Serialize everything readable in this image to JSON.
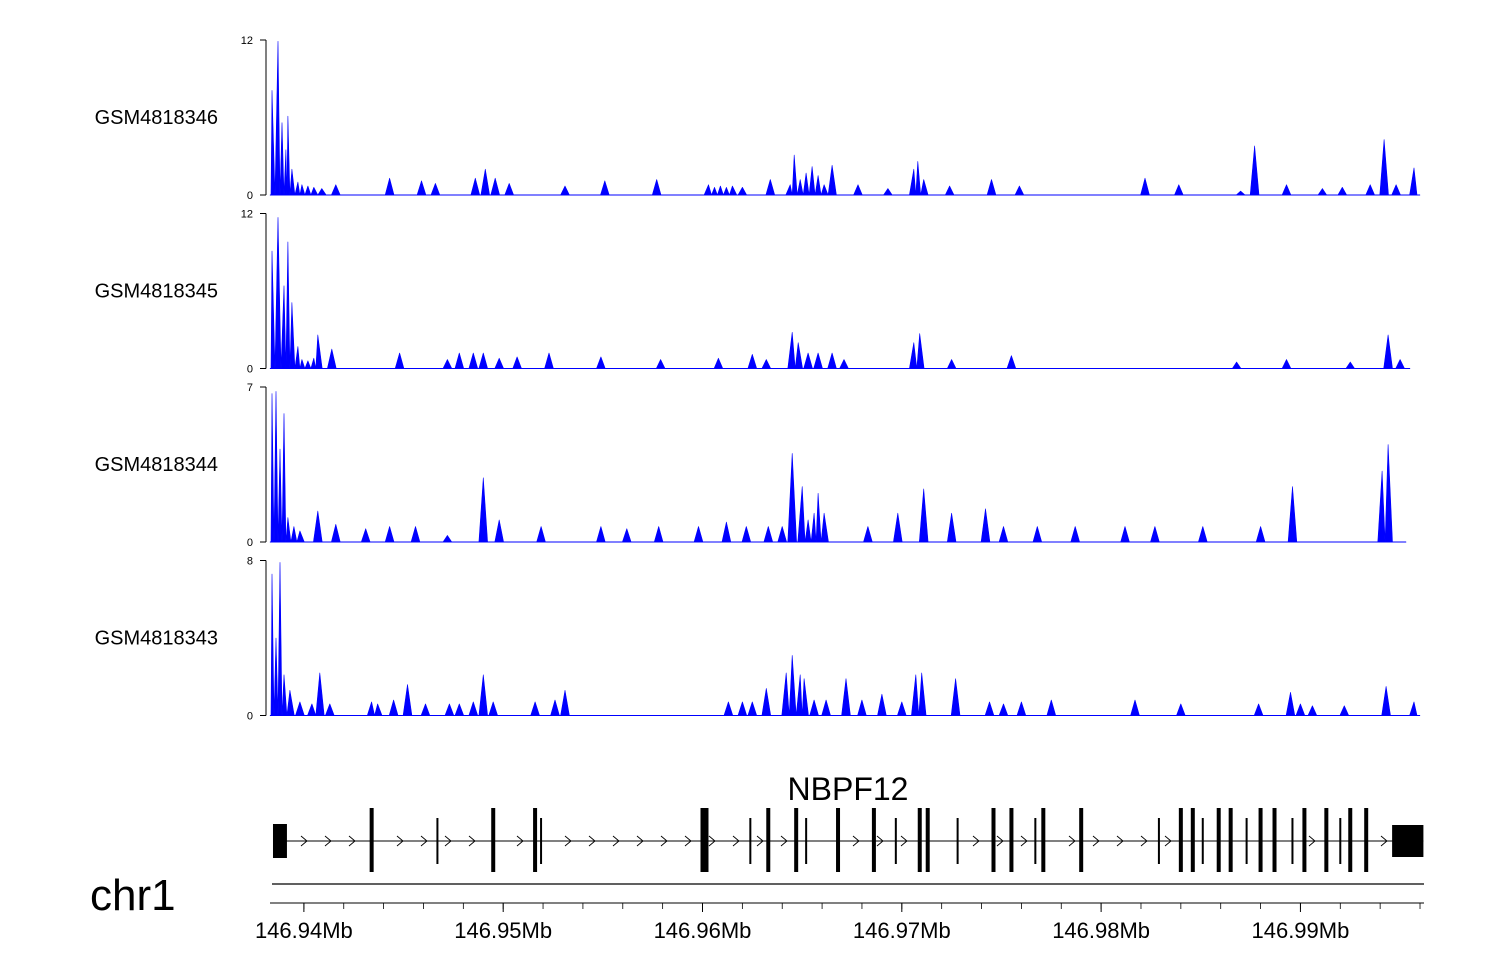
{
  "chart_data": {
    "type": "area",
    "title": "",
    "chromosome_label": "chr1",
    "gene_label": "NBPF12",
    "fill_color": "#0000ff",
    "xlim": [
      146.9383,
      146.9962
    ],
    "x_ticks": [
      {
        "value": 146.94,
        "label": "146.94Mb"
      },
      {
        "value": 146.95,
        "label": "146.95Mb"
      },
      {
        "value": 146.96,
        "label": "146.96Mb"
      },
      {
        "value": 146.97,
        "label": "146.97Mb"
      },
      {
        "value": 146.98,
        "label": "146.98Mb"
      },
      {
        "value": 146.99,
        "label": "146.99Mb"
      }
    ],
    "tracks": [
      {
        "name": "GSM4818346",
        "ylim": [
          0,
          12
        ],
        "ytick_labels": [
          "0",
          "12"
        ],
        "end": 146.996,
        "peaks": [
          [
            146.9384,
            8.1
          ],
          [
            146.9387,
            11.9
          ],
          [
            146.9389,
            5.6
          ],
          [
            146.9391,
            3.5
          ],
          [
            146.9392,
            6.1
          ],
          [
            146.9394,
            2.0
          ],
          [
            146.9397,
            1.0
          ],
          [
            146.9399,
            0.8
          ],
          [
            146.9402,
            0.7
          ],
          [
            146.9405,
            0.6
          ],
          [
            146.9409,
            0.5
          ],
          [
            146.9416,
            0.8
          ],
          [
            146.9443,
            1.3
          ],
          [
            146.9459,
            1.1
          ],
          [
            146.9466,
            0.9
          ],
          [
            146.9486,
            1.3
          ],
          [
            146.9491,
            2.0
          ],
          [
            146.9496,
            1.3
          ],
          [
            146.9503,
            0.9
          ],
          [
            146.9531,
            0.7
          ],
          [
            146.9551,
            1.1
          ],
          [
            146.9577,
            1.2
          ],
          [
            146.9603,
            0.8
          ],
          [
            146.9606,
            0.6
          ],
          [
            146.9609,
            0.7
          ],
          [
            146.9612,
            0.6
          ],
          [
            146.9615,
            0.7
          ],
          [
            146.962,
            0.6
          ],
          [
            146.9634,
            1.2
          ],
          [
            146.9644,
            0.8
          ],
          [
            146.9646,
            3.1
          ],
          [
            146.9649,
            1.2
          ],
          [
            146.9652,
            1.7
          ],
          [
            146.9655,
            2.2
          ],
          [
            146.9658,
            1.5
          ],
          [
            146.9661,
            0.8
          ],
          [
            146.9665,
            2.3
          ],
          [
            146.9678,
            0.8
          ],
          [
            146.9693,
            0.5
          ],
          [
            146.9706,
            2.0
          ],
          [
            146.9708,
            2.6
          ],
          [
            146.9711,
            1.2
          ],
          [
            146.9724,
            0.7
          ],
          [
            146.9745,
            1.2
          ],
          [
            146.9759,
            0.7
          ],
          [
            146.9822,
            1.3
          ],
          [
            146.9839,
            0.8
          ],
          [
            146.987,
            0.3
          ],
          [
            146.9877,
            3.8
          ],
          [
            146.9893,
            0.8
          ],
          [
            146.9911,
            0.5
          ],
          [
            146.9921,
            0.6
          ],
          [
            146.9935,
            0.8
          ],
          [
            146.9942,
            4.3
          ],
          [
            146.9948,
            0.8
          ],
          [
            146.9957,
            2.1
          ]
        ]
      },
      {
        "name": "GSM4818345",
        "ylim": [
          0,
          12
        ],
        "ytick_labels": [
          "0",
          "12"
        ],
        "end": 146.9955,
        "peaks": [
          [
            146.9384,
            9.1
          ],
          [
            146.9387,
            11.7
          ],
          [
            146.939,
            6.4
          ],
          [
            146.9392,
            9.8
          ],
          [
            146.9394,
            5.1
          ],
          [
            146.9397,
            1.7
          ],
          [
            146.9399,
            0.7
          ],
          [
            146.9402,
            0.6
          ],
          [
            146.9405,
            0.8
          ],
          [
            146.9407,
            2.6
          ],
          [
            146.9414,
            1.5
          ],
          [
            146.9448,
            1.2
          ],
          [
            146.9472,
            0.7
          ],
          [
            146.9478,
            1.2
          ],
          [
            146.9485,
            1.2
          ],
          [
            146.949,
            1.2
          ],
          [
            146.9498,
            0.8
          ],
          [
            146.9507,
            0.9
          ],
          [
            146.9523,
            1.2
          ],
          [
            146.9549,
            0.9
          ],
          [
            146.9579,
            0.7
          ],
          [
            146.9608,
            0.8
          ],
          [
            146.9625,
            1.1
          ],
          [
            146.9632,
            0.7
          ],
          [
            146.9645,
            2.8
          ],
          [
            146.9648,
            2.0
          ],
          [
            146.9653,
            1.2
          ],
          [
            146.9658,
            1.2
          ],
          [
            146.9665,
            1.2
          ],
          [
            146.9671,
            0.7
          ],
          [
            146.9706,
            2.0
          ],
          [
            146.9709,
            2.7
          ],
          [
            146.9725,
            0.7
          ],
          [
            146.9755,
            1.0
          ],
          [
            146.9868,
            0.5
          ],
          [
            146.9893,
            0.7
          ],
          [
            146.9925,
            0.5
          ],
          [
            146.9944,
            2.6
          ],
          [
            146.995,
            0.7
          ]
        ]
      },
      {
        "name": "GSM4818344",
        "ylim": [
          0,
          7
        ],
        "ytick_labels": [
          "0",
          "7"
        ],
        "end": 146.9953,
        "peaks": [
          [
            146.9384,
            6.7
          ],
          [
            146.9386,
            6.8
          ],
          [
            146.9388,
            4.2
          ],
          [
            146.939,
            5.8
          ],
          [
            146.9392,
            1.1
          ],
          [
            146.9395,
            0.7
          ],
          [
            146.9398,
            0.5
          ],
          [
            146.9407,
            1.4
          ],
          [
            146.9416,
            0.8
          ],
          [
            146.9431,
            0.6
          ],
          [
            146.9443,
            0.7
          ],
          [
            146.9456,
            0.7
          ],
          [
            146.9472,
            0.3
          ],
          [
            146.949,
            2.9
          ],
          [
            146.9498,
            1.0
          ],
          [
            146.9519,
            0.7
          ],
          [
            146.9549,
            0.7
          ],
          [
            146.9562,
            0.6
          ],
          [
            146.9578,
            0.7
          ],
          [
            146.9598,
            0.7
          ],
          [
            146.9612,
            0.9
          ],
          [
            146.9622,
            0.7
          ],
          [
            146.9633,
            0.7
          ],
          [
            146.964,
            0.7
          ],
          [
            146.9645,
            4.0
          ],
          [
            146.965,
            2.5
          ],
          [
            146.9653,
            1.0
          ],
          [
            146.9656,
            1.3
          ],
          [
            146.9658,
            2.2
          ],
          [
            146.9661,
            1.3
          ],
          [
            146.9683,
            0.7
          ],
          [
            146.9698,
            1.3
          ],
          [
            146.9711,
            2.4
          ],
          [
            146.9725,
            1.3
          ],
          [
            146.9742,
            1.5
          ],
          [
            146.9751,
            0.7
          ],
          [
            146.9768,
            0.7
          ],
          [
            146.9787,
            0.7
          ],
          [
            146.9812,
            0.7
          ],
          [
            146.9827,
            0.7
          ],
          [
            146.9851,
            0.7
          ],
          [
            146.988,
            0.7
          ],
          [
            146.9896,
            2.5
          ],
          [
            146.9941,
            3.2
          ],
          [
            146.9944,
            4.4
          ]
        ]
      },
      {
        "name": "GSM4818343",
        "ylim": [
          0,
          8
        ],
        "ytick_labels": [
          "0",
          "8"
        ],
        "end": 146.996,
        "peaks": [
          [
            146.9384,
            7.3
          ],
          [
            146.9386,
            4.0
          ],
          [
            146.9388,
            7.9
          ],
          [
            146.939,
            2.1
          ],
          [
            146.9393,
            1.3
          ],
          [
            146.9398,
            0.7
          ],
          [
            146.9404,
            0.6
          ],
          [
            146.9408,
            2.2
          ],
          [
            146.9413,
            0.6
          ],
          [
            146.9434,
            0.7
          ],
          [
            146.9437,
            0.6
          ],
          [
            146.9445,
            0.8
          ],
          [
            146.9452,
            1.6
          ],
          [
            146.9461,
            0.6
          ],
          [
            146.9473,
            0.6
          ],
          [
            146.9478,
            0.6
          ],
          [
            146.9485,
            0.7
          ],
          [
            146.949,
            2.1
          ],
          [
            146.9495,
            0.7
          ],
          [
            146.9516,
            0.7
          ],
          [
            146.9526,
            0.8
          ],
          [
            146.9531,
            1.3
          ],
          [
            146.9613,
            0.7
          ],
          [
            146.962,
            0.7
          ],
          [
            146.9625,
            0.7
          ],
          [
            146.9632,
            1.4
          ],
          [
            146.9642,
            2.2
          ],
          [
            146.9645,
            3.1
          ],
          [
            146.9649,
            2.1
          ],
          [
            146.9651,
            1.9
          ],
          [
            146.9656,
            0.8
          ],
          [
            146.9662,
            0.8
          ],
          [
            146.9672,
            1.9
          ],
          [
            146.968,
            0.8
          ],
          [
            146.969,
            1.1
          ],
          [
            146.97,
            0.7
          ],
          [
            146.9707,
            2.1
          ],
          [
            146.971,
            2.2
          ],
          [
            146.9727,
            1.9
          ],
          [
            146.9744,
            0.7
          ],
          [
            146.9751,
            0.6
          ],
          [
            146.976,
            0.7
          ],
          [
            146.9775,
            0.8
          ],
          [
            146.9817,
            0.8
          ],
          [
            146.984,
            0.6
          ],
          [
            146.9879,
            0.6
          ],
          [
            146.9895,
            1.2
          ],
          [
            146.99,
            0.6
          ],
          [
            146.9906,
            0.5
          ],
          [
            146.9922,
            0.5
          ],
          [
            146.9943,
            1.5
          ],
          [
            146.9957,
            0.7
          ]
        ]
      }
    ],
    "gene_model": {
      "strand": "+",
      "tx_start": 146.93845,
      "tx_end": 146.99617,
      "utr_blocks": [
        [
          146.93845,
          146.93915
        ],
        [
          146.9946,
          146.99617
        ]
      ],
      "exons": [
        146.9434,
        146.9467,
        146.9495,
        146.9516,
        146.9519,
        146.96,
        146.9602,
        146.9624,
        146.9633,
        146.9647,
        146.9652,
        146.9668,
        146.9686,
        146.9697,
        146.9709,
        146.9713,
        146.9728,
        146.9746,
        146.9755,
        146.9767,
        146.9771,
        146.979,
        146.9829,
        146.984,
        146.9846,
        146.9851,
        146.9859,
        146.9865,
        146.9873,
        146.988,
        146.9887,
        146.9896,
        146.9902,
        146.9913,
        146.992,
        146.9925,
        146.9933
      ]
    }
  }
}
